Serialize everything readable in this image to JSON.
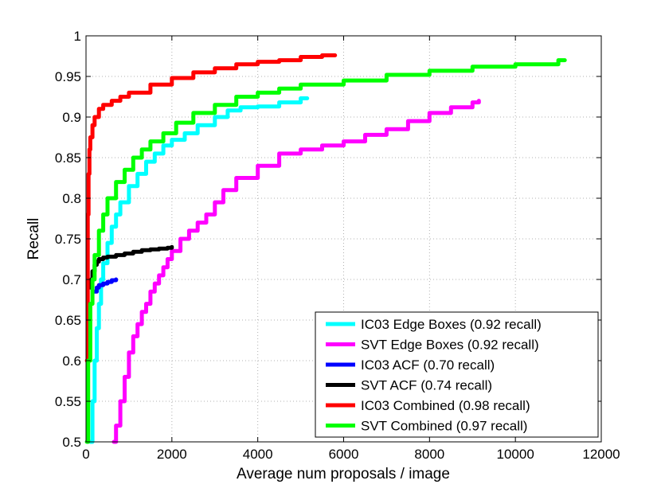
{
  "chart_data": {
    "type": "line",
    "title": "",
    "xlabel": "Average num proposals / image",
    "ylabel": "Recall",
    "xlim": [
      0,
      12000
    ],
    "ylim": [
      0.5,
      1
    ],
    "grid": true,
    "legend_position": "bottom-right",
    "x_ticks": [
      0,
      2000,
      4000,
      6000,
      8000,
      10000,
      12000
    ],
    "x_tick_labels": [
      "0",
      "2000",
      "4000",
      "6000",
      "8000",
      "10000",
      "12000"
    ],
    "y_ticks": [
      0.5,
      0.55,
      0.6,
      0.65,
      0.7,
      0.75,
      0.8,
      0.85,
      0.9,
      0.95,
      1
    ],
    "y_tick_labels": [
      "0.5",
      "0.55",
      "0.6",
      "0.65",
      "0.7",
      "0.75",
      "0.8",
      "0.85",
      "0.9",
      "0.95",
      "1"
    ],
    "series": [
      {
        "name": "IC03 Edge Boxes (0.92 recall)",
        "color": "#00ffff",
        "x": [
          100,
          150,
          200,
          250,
          300,
          350,
          400,
          500,
          600,
          700,
          800,
          1000,
          1200,
          1400,
          1600,
          1800,
          2000,
          2300,
          2600,
          3000,
          3300,
          3600,
          4000,
          4500,
          5000,
          5150
        ],
        "y": [
          0.5,
          0.55,
          0.6,
          0.64,
          0.67,
          0.7,
          0.72,
          0.745,
          0.765,
          0.78,
          0.795,
          0.815,
          0.83,
          0.845,
          0.855,
          0.865,
          0.872,
          0.88,
          0.89,
          0.9,
          0.908,
          0.912,
          0.913,
          0.918,
          0.923,
          0.923
        ]
      },
      {
        "name": "SVT Edge Boxes (0.92 recall)",
        "color": "#ff00ff",
        "x": [
          650,
          700,
          800,
          900,
          1000,
          1100,
          1200,
          1300,
          1400,
          1500,
          1600,
          1700,
          1800,
          1900,
          2000,
          2200,
          2400,
          2600,
          2800,
          3000,
          3200,
          3500,
          4000,
          4500,
          5000,
          5500,
          6000,
          6500,
          7000,
          7500,
          8000,
          8500,
          9000,
          9150
        ],
        "y": [
          0.5,
          0.52,
          0.55,
          0.58,
          0.61,
          0.63,
          0.645,
          0.66,
          0.67,
          0.685,
          0.695,
          0.705,
          0.715,
          0.725,
          0.735,
          0.75,
          0.76,
          0.77,
          0.78,
          0.795,
          0.81,
          0.825,
          0.84,
          0.855,
          0.86,
          0.865,
          0.87,
          0.878,
          0.885,
          0.895,
          0.905,
          0.912,
          0.918,
          0.92
        ]
      },
      {
        "name": "IC03 ACF (0.70 recall)",
        "color": "#0000ff",
        "x": [
          200,
          250,
          300,
          400,
          500,
          600,
          700
        ],
        "y": [
          0.685,
          0.69,
          0.693,
          0.695,
          0.697,
          0.699,
          0.7
        ]
      },
      {
        "name": "SVT ACF (0.74 recall)",
        "color": "#000000",
        "x": [
          100,
          120,
          150,
          200,
          250,
          300,
          400,
          500,
          700,
          900,
          1100,
          1300,
          1500,
          1700,
          1900,
          2000
        ],
        "y": [
          0.69,
          0.7,
          0.71,
          0.718,
          0.722,
          0.725,
          0.727,
          0.728,
          0.73,
          0.732,
          0.734,
          0.736,
          0.737,
          0.738,
          0.739,
          0.74
        ]
      },
      {
        "name": "IC03 Combined (0.98 recall)",
        "color": "#ff0000",
        "x": [
          20,
          40,
          60,
          80,
          100,
          150,
          200,
          300,
          400,
          600,
          800,
          1000,
          1500,
          2000,
          2500,
          3000,
          3500,
          4000,
          4500,
          5000,
          5500,
          5800
        ],
        "y": [
          0.6,
          0.78,
          0.83,
          0.86,
          0.875,
          0.89,
          0.9,
          0.91,
          0.915,
          0.92,
          0.925,
          0.93,
          0.94,
          0.948,
          0.955,
          0.96,
          0.965,
          0.968,
          0.97,
          0.974,
          0.976,
          0.976
        ]
      },
      {
        "name": "SVT Combined (0.97 recall)",
        "color": "#00ff00",
        "x": [
          20,
          50,
          100,
          150,
          200,
          300,
          400,
          500,
          700,
          900,
          1100,
          1300,
          1500,
          1800,
          2100,
          2500,
          3000,
          3500,
          4000,
          4500,
          5000,
          6000,
          7000,
          8000,
          9000,
          10000,
          11000,
          11150
        ],
        "y": [
          0.5,
          0.6,
          0.67,
          0.7,
          0.73,
          0.76,
          0.78,
          0.8,
          0.82,
          0.835,
          0.85,
          0.86,
          0.87,
          0.88,
          0.893,
          0.905,
          0.915,
          0.925,
          0.93,
          0.935,
          0.94,
          0.945,
          0.952,
          0.957,
          0.962,
          0.965,
          0.97,
          0.97
        ]
      }
    ]
  }
}
